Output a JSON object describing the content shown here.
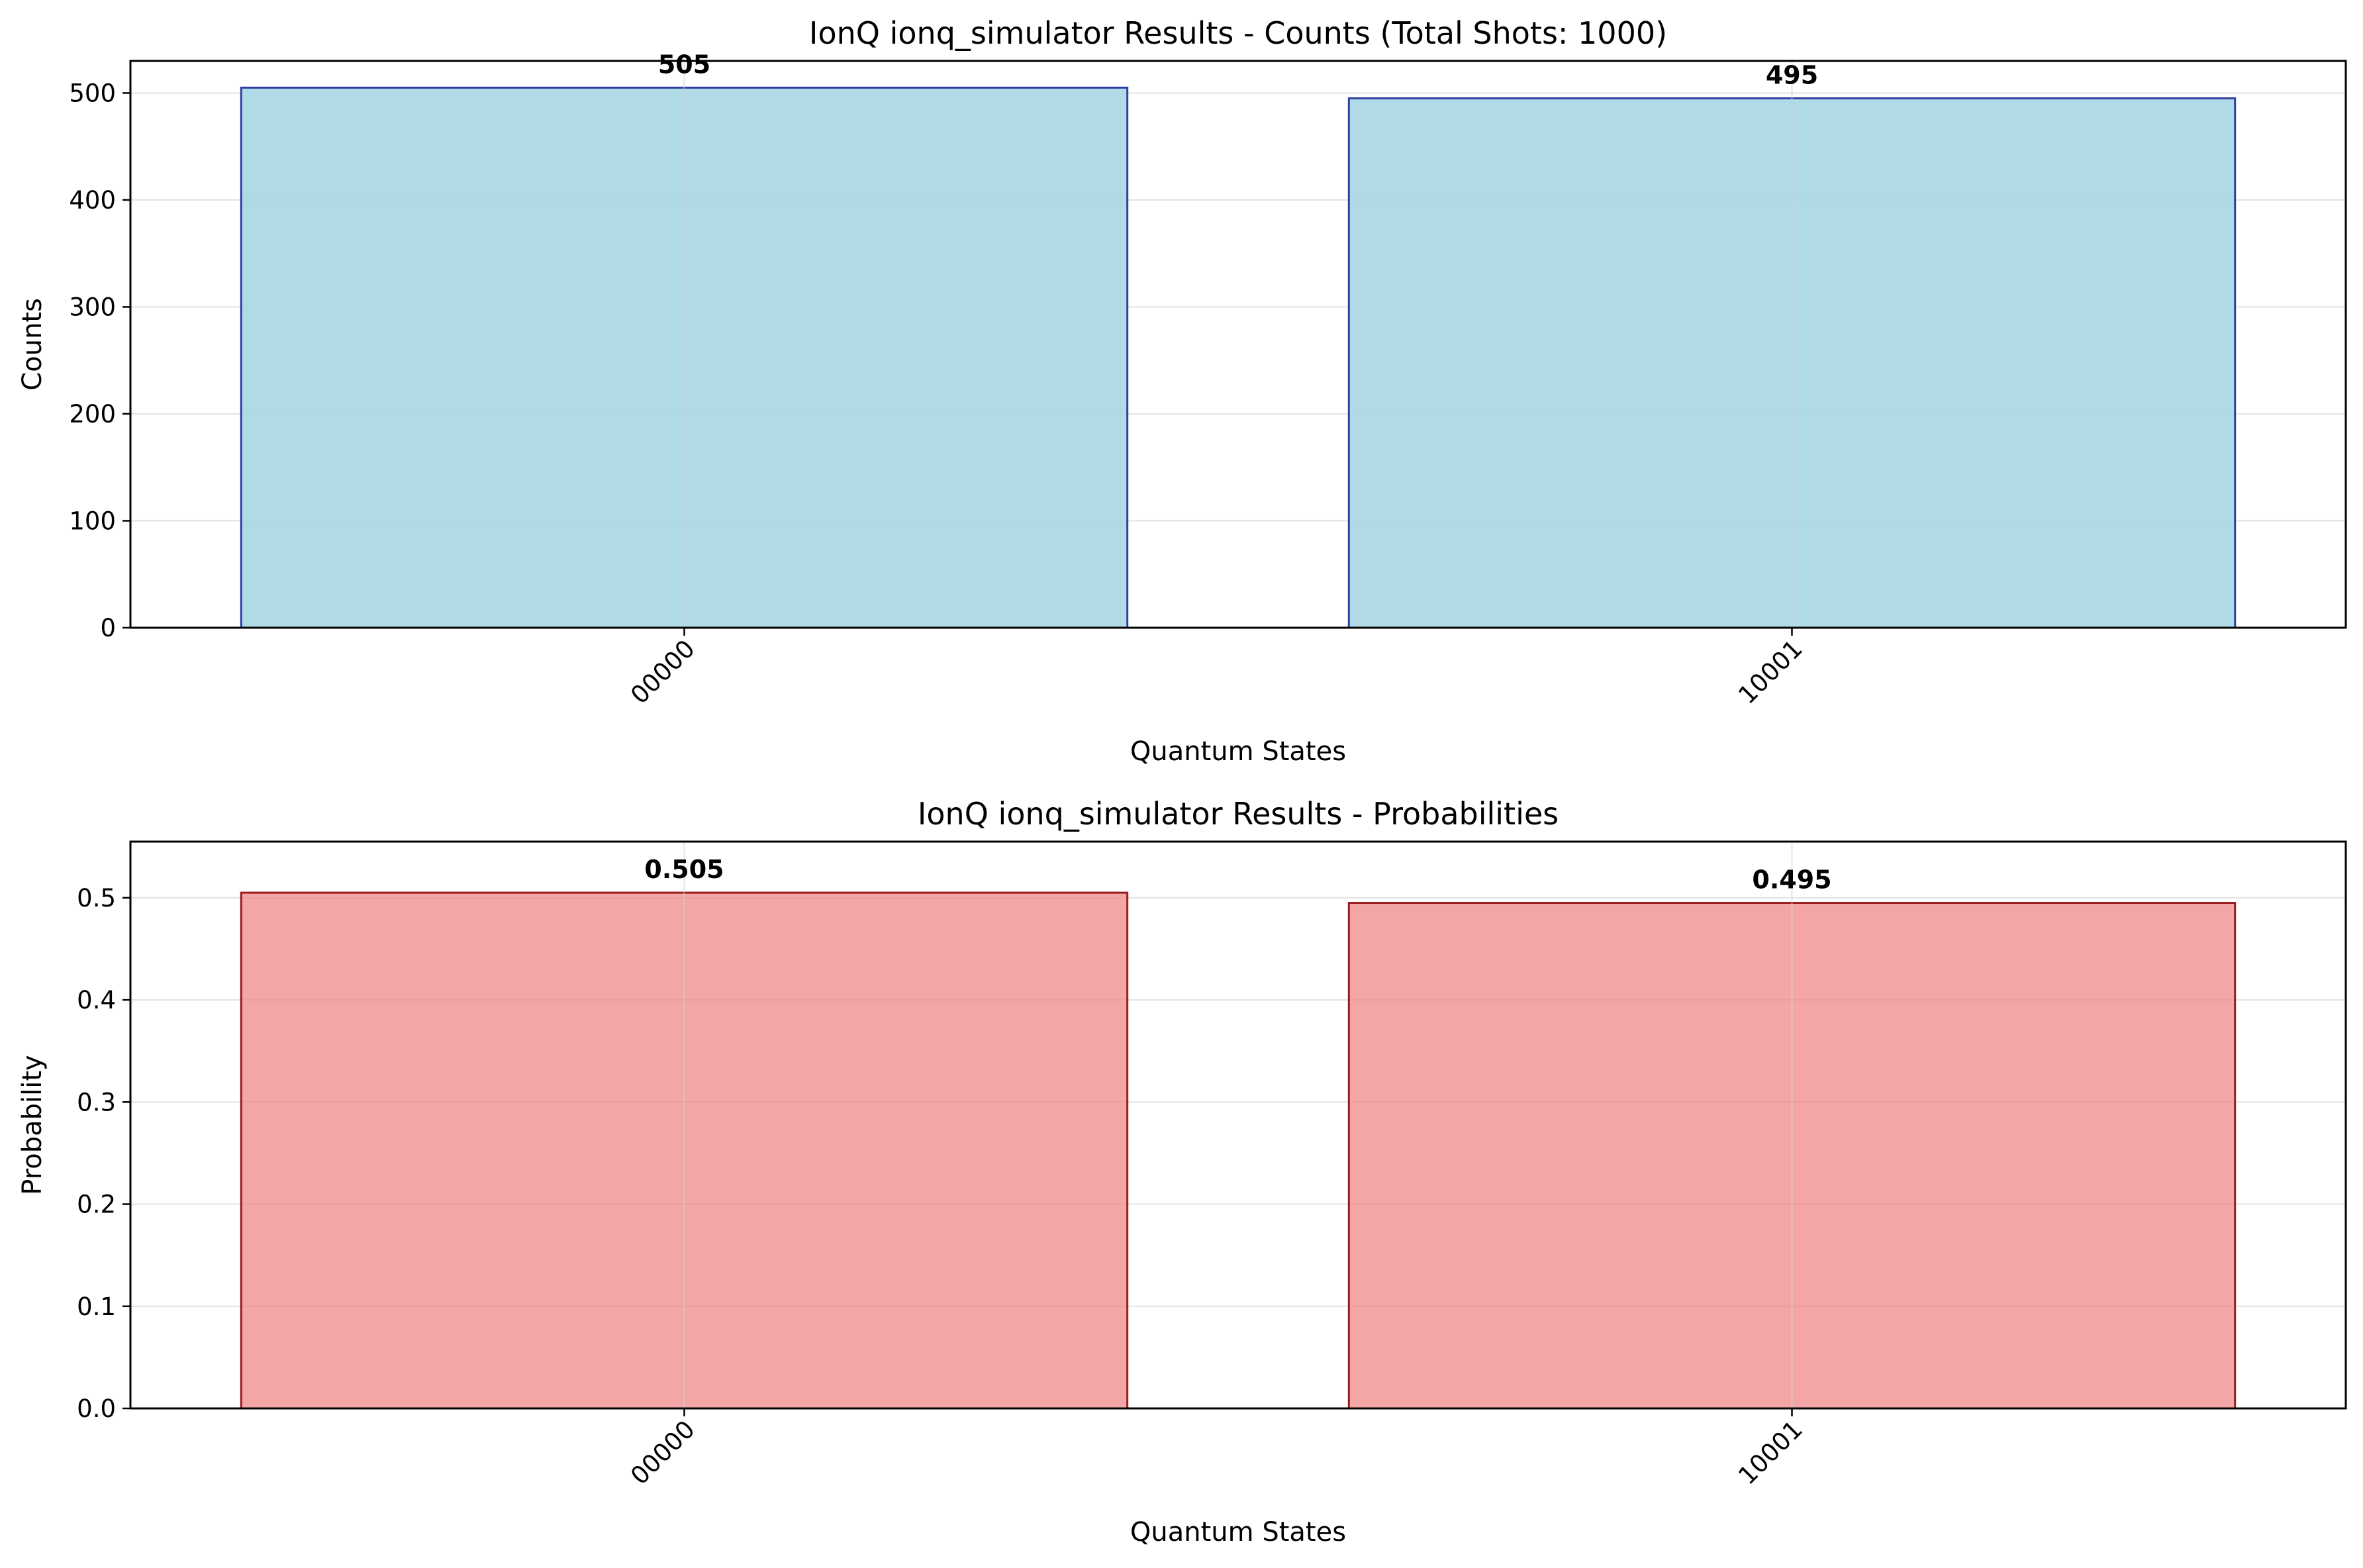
{
  "chart_data": [
    {
      "type": "bar",
      "title": "IonQ ionq_simulator Results - Counts (Total Shots: 1000)",
      "xlabel": "Quantum States",
      "ylabel": "Counts",
      "categories": [
        "00000",
        "10001"
      ],
      "values": [
        505,
        495
      ],
      "value_labels": [
        "505",
        "495"
      ],
      "ylim": [
        0,
        530
      ],
      "yticks": [
        0,
        100,
        200,
        300,
        400,
        500
      ],
      "ytick_labels": [
        "0",
        "100",
        "200",
        "300",
        "400",
        "500"
      ],
      "grid": true,
      "colors": {
        "fill": "#add8e6",
        "fill_opacity": 0.95,
        "edge": "#2f3fa0"
      }
    },
    {
      "type": "bar",
      "title": "IonQ ionq_simulator Results - Probabilities",
      "xlabel": "Quantum States",
      "ylabel": "Probability",
      "categories": [
        "00000",
        "10001"
      ],
      "values": [
        0.505,
        0.495
      ],
      "value_labels": [
        "0.505",
        "0.495"
      ],
      "ylim": [
        0,
        0.555
      ],
      "yticks": [
        0,
        0.1,
        0.2,
        0.3,
        0.4,
        0.5
      ],
      "ytick_labels": [
        "0.0",
        "0.1",
        "0.2",
        "0.3",
        "0.4",
        "0.5"
      ],
      "grid": true,
      "colors": {
        "fill": "#f08080",
        "fill_opacity": 0.7,
        "edge": "#9b1c1c"
      }
    }
  ]
}
